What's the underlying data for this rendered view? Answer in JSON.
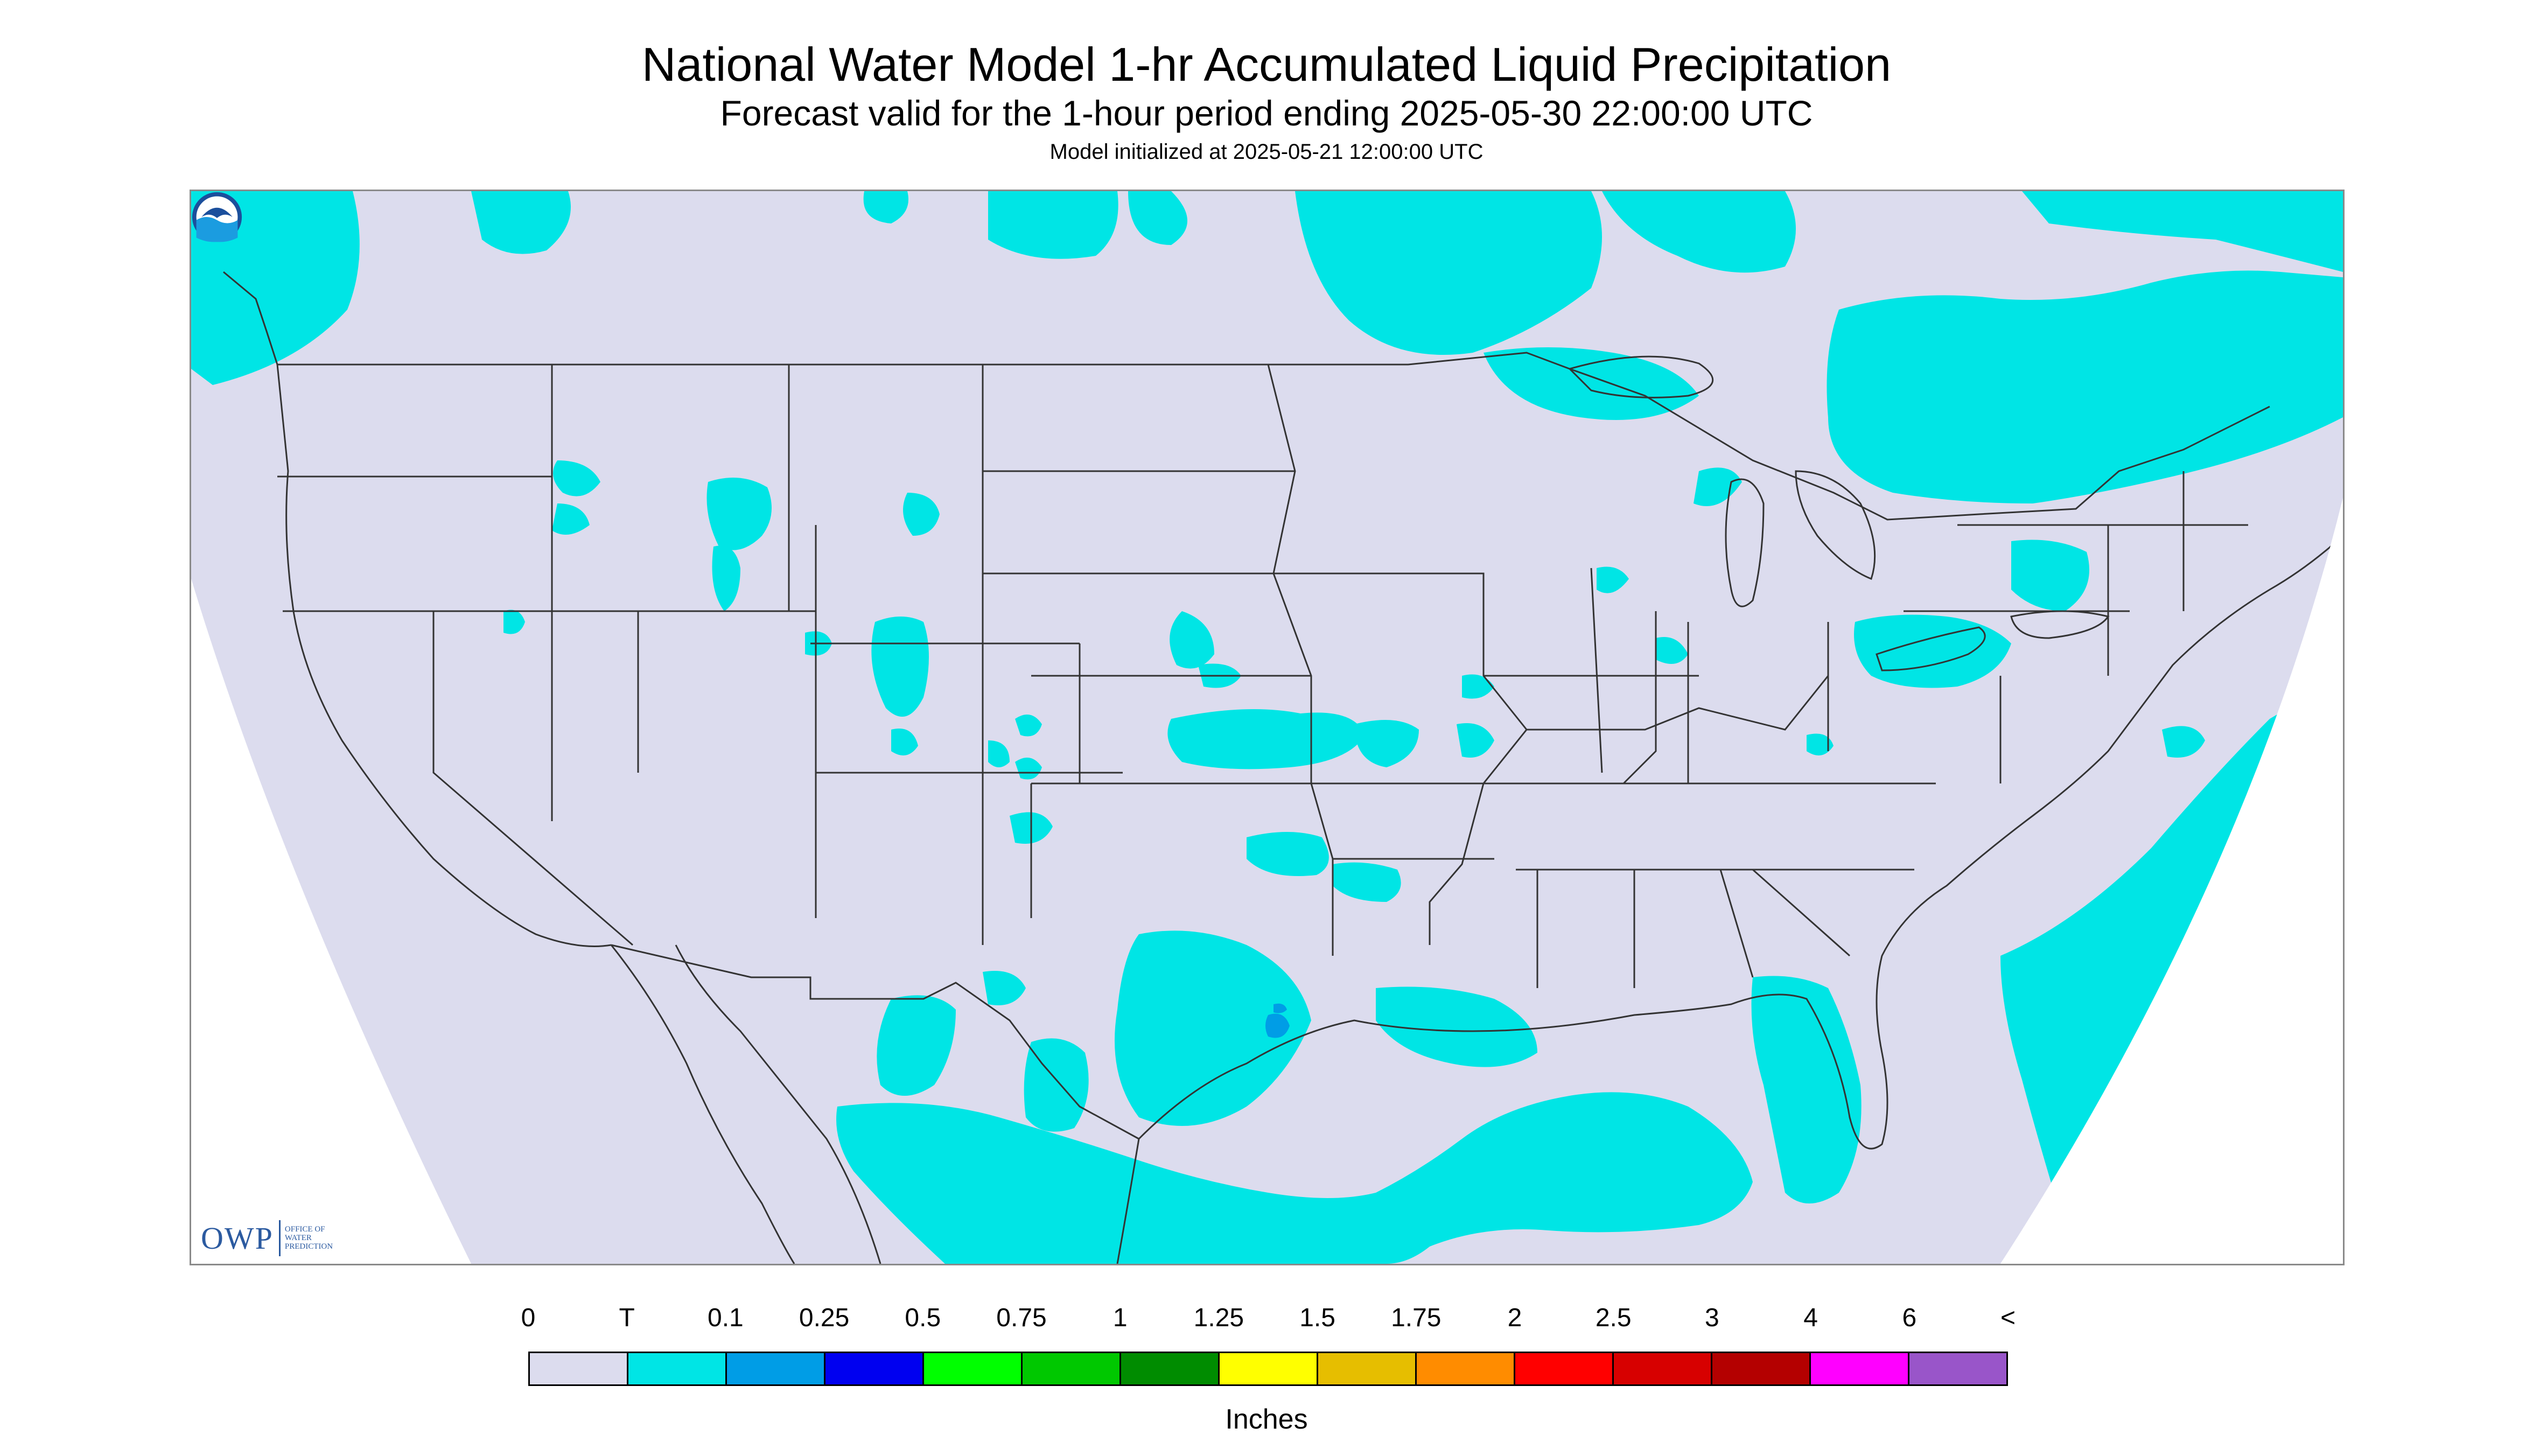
{
  "header": {
    "title": "National Water Model 1-hr Accumulated Liquid Precipitation",
    "subtitle": "Forecast valid for the 1-hour period ending 2025-05-30 22:00:00 UTC",
    "init_line": "Model initialized at 2025-05-21 12:00:00 UTC"
  },
  "map": {
    "background_color": "#dcdcee",
    "trace_color": "#00e5e5",
    "light_color": "#009de6",
    "outside_color": "#ffffff",
    "border_color": "#333333"
  },
  "logos": {
    "owp_mark": "OWP",
    "owp_text": "Office of Water Prediction",
    "noaa_icon": "noaa-logo-icon"
  },
  "legend": {
    "labels": [
      "0",
      "T",
      "0.1",
      "0.25",
      "0.5",
      "0.75",
      "1",
      "1.25",
      "1.5",
      "1.75",
      "2",
      "2.5",
      "3",
      "4",
      "6",
      "<"
    ],
    "colors": [
      "#dcdcee",
      "#00e5e5",
      "#009de6",
      "#0000f0",
      "#00ff00",
      "#00c800",
      "#008c00",
      "#ffff00",
      "#e6be00",
      "#ff8c00",
      "#ff0000",
      "#d70000",
      "#b40000",
      "#ff00ff",
      "#9955c9"
    ],
    "units": "Inches"
  }
}
